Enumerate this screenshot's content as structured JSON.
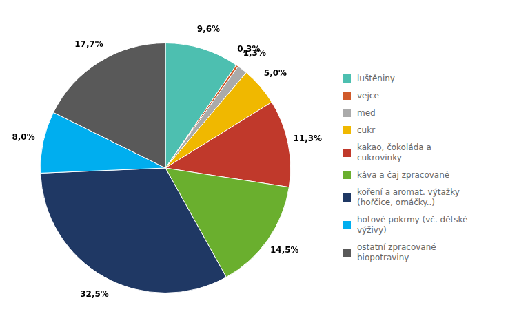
{
  "chart_data": {
    "type": "pie",
    "categories": [
      "luštěniny",
      "vejce",
      "med",
      "cukr",
      "kakao, čokoláda a\ncukrovinky",
      "káva a čaj zpracované",
      "koření a aromat. výtažky\n(hořčice, omáčky..)",
      "hotové pokrmy (vč. dětské\nvýživy)",
      "ostatní zpracované\nbiopotraviny"
    ],
    "values": [
      9.6,
      0.3,
      1.3,
      5.0,
      11.3,
      14.5,
      32.5,
      8.0,
      17.7
    ],
    "value_labels": [
      "9,6%",
      "0,3%",
      "1,3%",
      "5,0%",
      "11,3%",
      "14,5%",
      "32,5%",
      "8,0%",
      "17,7%"
    ],
    "colors": [
      "#4DBFB0",
      "#D05A2A",
      "#AAAAAA",
      "#F0B800",
      "#C0392B",
      "#6AAF2E",
      "#1F3864",
      "#00AEEF",
      "#595959"
    ],
    "data_labels": true,
    "legend": "right"
  }
}
